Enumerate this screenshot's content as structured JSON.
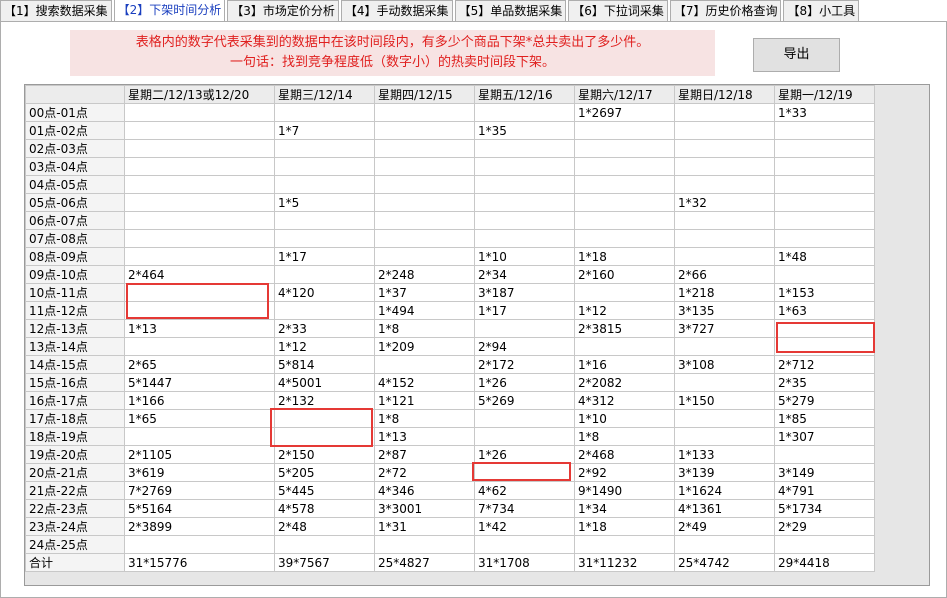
{
  "tabs": [
    "【1】搜索数据采集",
    "【2】下架时间分析",
    "【3】市场定价分析",
    "【4】手动数据采集",
    "【5】单品数据采集",
    "【6】下拉词采集",
    "【7】历史价格查询",
    "【8】小工具"
  ],
  "active_tab": 1,
  "notice": {
    "lines": [
      "表格内的数字代表采集到的数据中在该时间段内，有多少个商品下架*总共卖出了多少件。",
      "一句话：找到竞争程度低（数字小）的热卖时间段下架。"
    ]
  },
  "export_button": "导出",
  "table": {
    "columns": [
      "星期二/12/13或12/20",
      "星期三/12/14",
      "星期四/12/15",
      "星期五/12/16",
      "星期六/12/17",
      "星期日/12/18",
      "星期一/12/19"
    ],
    "rows": [
      {
        "label": "00点-01点",
        "cells": [
          null,
          null,
          null,
          null,
          "1*2697",
          null,
          "1*33"
        ]
      },
      {
        "label": "01点-02点",
        "cells": [
          null,
          "1*7",
          null,
          "1*35",
          null,
          null,
          null
        ]
      },
      {
        "label": "02点-03点",
        "cells": [
          null,
          null,
          null,
          null,
          null,
          null,
          null
        ]
      },
      {
        "label": "03点-04点",
        "cells": [
          null,
          null,
          null,
          null,
          null,
          null,
          null
        ]
      },
      {
        "label": "04点-05点",
        "cells": [
          null,
          null,
          null,
          null,
          null,
          null,
          null
        ]
      },
      {
        "label": "05点-06点",
        "cells": [
          null,
          "1*5",
          null,
          null,
          null,
          "1*32",
          null
        ]
      },
      {
        "label": "06点-07点",
        "cells": [
          null,
          null,
          null,
          null,
          null,
          null,
          null
        ]
      },
      {
        "label": "07点-08点",
        "cells": [
          null,
          null,
          null,
          null,
          null,
          null,
          null
        ]
      },
      {
        "label": "08点-09点",
        "cells": [
          null,
          "1*17",
          null,
          "1*10",
          "1*18",
          null,
          "1*48"
        ]
      },
      {
        "label": "09点-10点",
        "cells": [
          "2*464",
          null,
          "2*248",
          "2*34",
          "2*160",
          "2*66",
          null
        ]
      },
      {
        "label": "10点-11点",
        "cells": [
          null,
          "4*120",
          "1*37",
          "3*187",
          null,
          "1*218",
          "1*153"
        ]
      },
      {
        "label": "11点-12点",
        "cells": [
          null,
          null,
          "1*494",
          "1*17",
          "1*12",
          "3*135",
          "1*63"
        ]
      },
      {
        "label": "12点-13点",
        "cells": [
          "1*13",
          "2*33",
          "1*8",
          null,
          "2*3815",
          "3*727",
          null
        ]
      },
      {
        "label": "13点-14点",
        "cells": [
          null,
          "1*12",
          "1*209",
          "2*94",
          null,
          null,
          null
        ]
      },
      {
        "label": "14点-15点",
        "cells": [
          "2*65",
          "5*814",
          null,
          "2*172",
          "1*16",
          "3*108",
          "2*712"
        ]
      },
      {
        "label": "15点-16点",
        "cells": [
          "5*1447",
          "4*5001",
          "4*152",
          "1*26",
          "2*2082",
          null,
          "2*35"
        ]
      },
      {
        "label": "16点-17点",
        "cells": [
          "1*166",
          "2*132",
          "1*121",
          "5*269",
          "4*312",
          "1*150",
          "5*279"
        ]
      },
      {
        "label": "17点-18点",
        "cells": [
          "1*65",
          null,
          "1*8",
          null,
          "1*10",
          null,
          "1*85"
        ]
      },
      {
        "label": "18点-19点",
        "cells": [
          null,
          null,
          "1*13",
          null,
          "1*8",
          null,
          "1*307"
        ]
      },
      {
        "label": "19点-20点",
        "cells": [
          "2*1105",
          "2*150",
          "2*87",
          "1*26",
          "2*468",
          "1*133",
          null
        ]
      },
      {
        "label": "20点-21点",
        "cells": [
          "3*619",
          "5*205",
          "2*72",
          null,
          "2*92",
          "3*139",
          "3*149"
        ]
      },
      {
        "label": "21点-22点",
        "cells": [
          "7*2769",
          "5*445",
          "4*346",
          "4*62",
          "9*1490",
          "1*1624",
          "4*791"
        ]
      },
      {
        "label": "22点-23点",
        "cells": [
          "5*5164",
          "4*578",
          "3*3001",
          "7*734",
          "1*34",
          "4*1361",
          "5*1734"
        ]
      },
      {
        "label": "23点-24点",
        "cells": [
          "2*3899",
          "2*48",
          "1*31",
          "1*42",
          "1*18",
          "2*49",
          "2*29"
        ]
      },
      {
        "label": "24点-25点",
        "cells": [
          null,
          null,
          null,
          null,
          null,
          null,
          null
        ]
      },
      {
        "label": "合计",
        "cells": [
          "31*15776",
          "39*7567",
          "25*4827",
          "31*1708",
          "31*11232",
          "25*4742",
          "29*4418"
        ]
      }
    ]
  }
}
